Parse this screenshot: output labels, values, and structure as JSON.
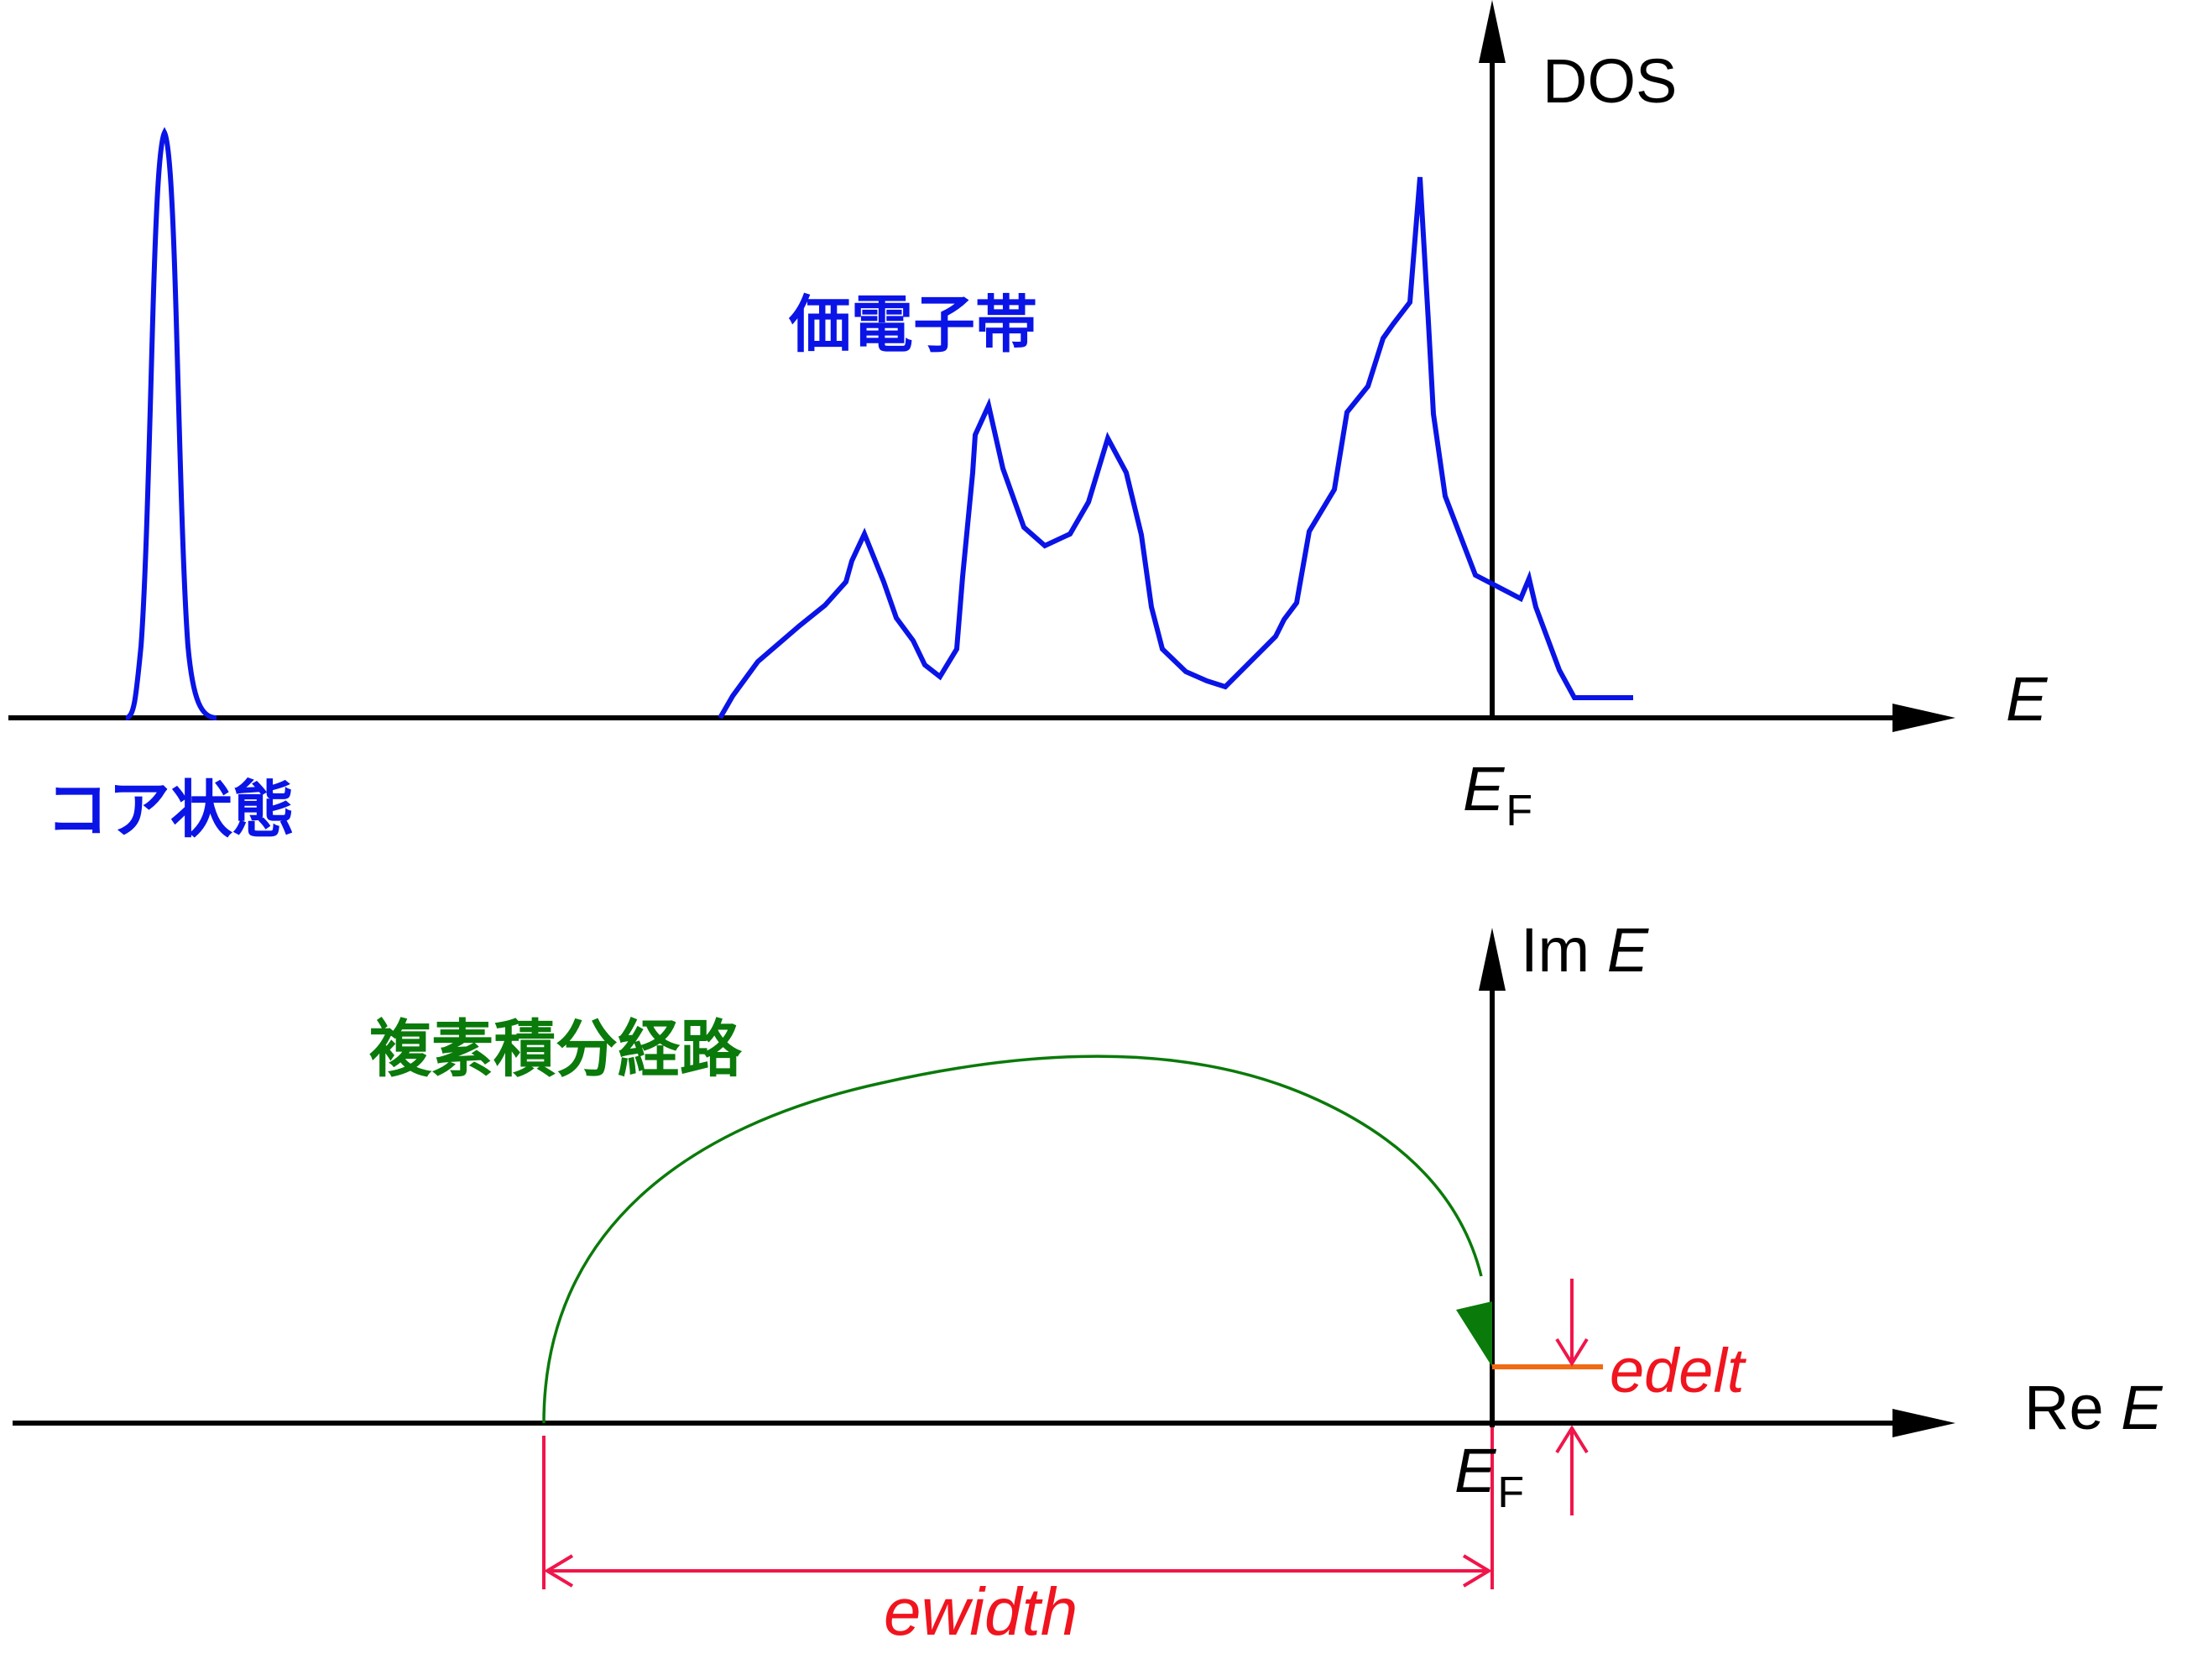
{
  "colors": {
    "axis": "#000000",
    "dos_curve": "#0a14e6",
    "contour": "#0a7a0a",
    "dimension": "#f0154a",
    "edelt_line": "#f06a14",
    "label_red": "#f0141e"
  },
  "top_panel": {
    "y_axis_label": "DOS",
    "x_axis_label": "E",
    "fermi_main": "E",
    "fermi_sub": "F",
    "core_label": "コア状態",
    "valence_label": "価電子帯"
  },
  "bottom_panel": {
    "im_axis_prefix": "Im ",
    "im_axis_var": "E",
    "re_axis_prefix": "Re ",
    "re_axis_var": "E",
    "fermi_main": "E",
    "fermi_sub": "F",
    "contour_label": "複素積分経路",
    "edelt_label": "edelt",
    "ewidth_label": "ewidth"
  }
}
